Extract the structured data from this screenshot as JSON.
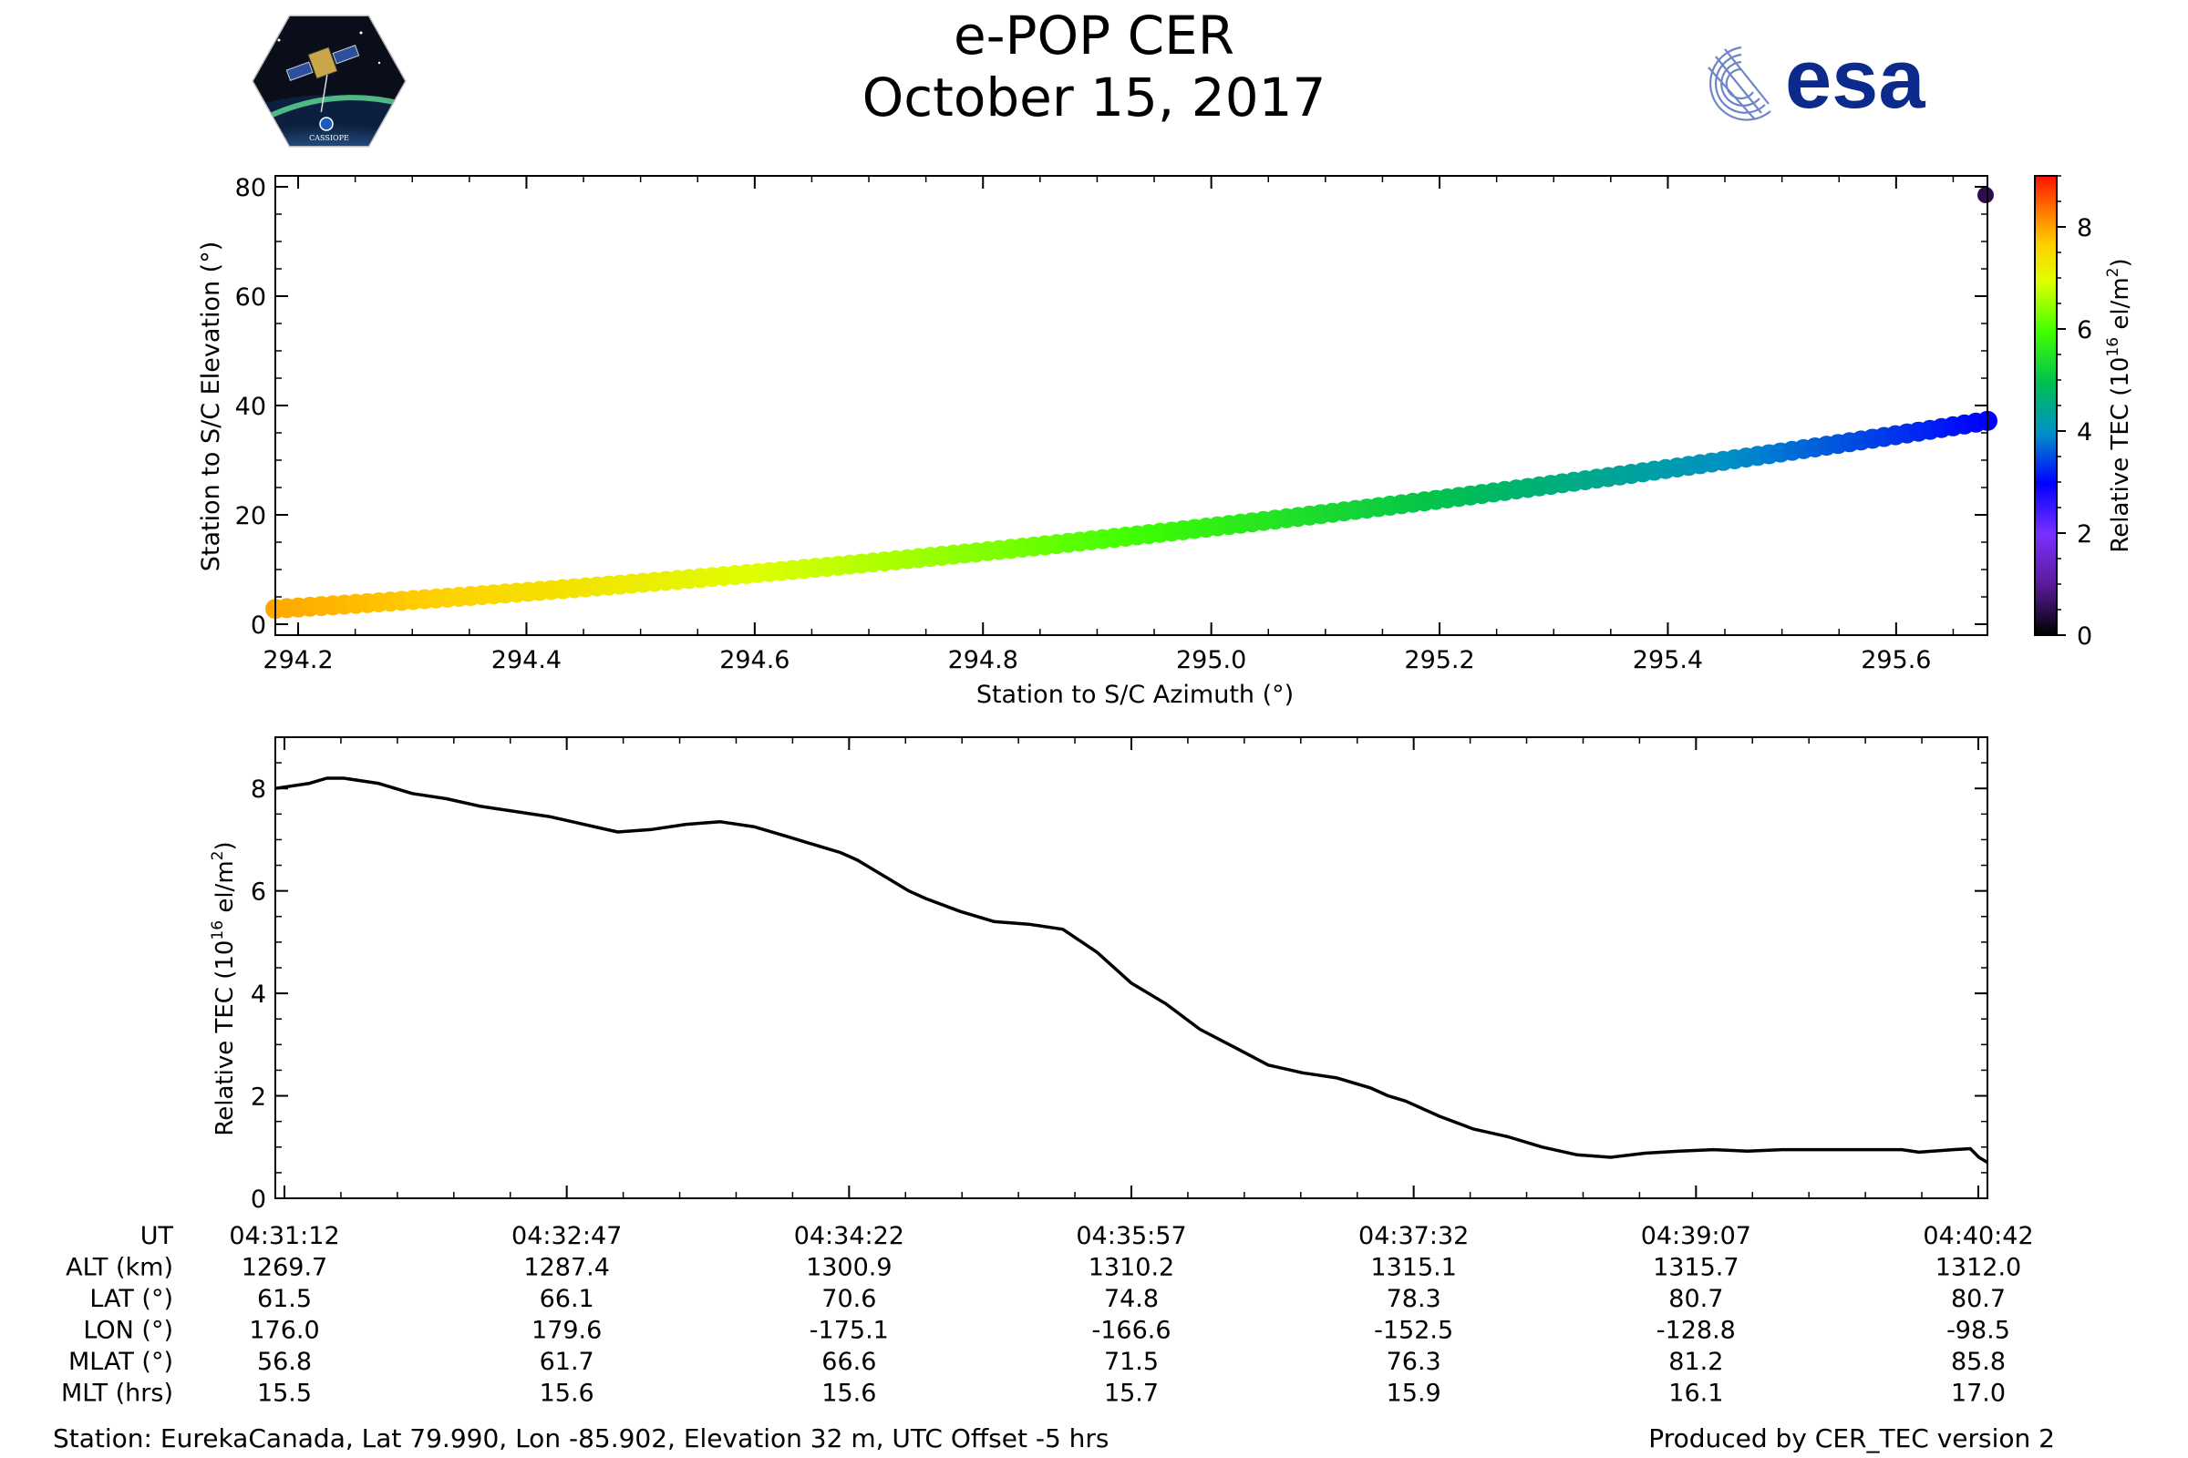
{
  "header": {
    "title": "e-POP CER",
    "date": "October 15, 2017",
    "left_logo_text": "CASSIOPE",
    "right_logo_text": "esa"
  },
  "colors": {
    "line": "#000000",
    "esa_blue": "#0b2a8c",
    "esa_light": "#6e86c6"
  },
  "footer": {
    "station": "Station: EurekaCanada, Lat 79.990, Lon -85.902, Elevation 32 m, UTC Offset -5 hrs",
    "produced": "Produced by CER_TEC version 2"
  },
  "colorbar": {
    "label": "Relative TEC (10^16 el/m^2)",
    "label_base": "Relative TEC (10",
    "label_exp": "16",
    "label_mid": " el/m",
    "label_exp2": "2",
    "label_end": ")",
    "ticks": [
      "0",
      "2",
      "4",
      "6",
      "8"
    ],
    "range": [
      0,
      9
    ]
  },
  "chart_data": [
    {
      "type": "scatter",
      "title": "",
      "xlabel": "Station to S/C Azimuth (°)",
      "ylabel": "Station to S/C Elevation (°)",
      "xlim": [
        294.18,
        295.68
      ],
      "ylim": [
        -2,
        82
      ],
      "xticks": [
        "294.2",
        "294.4",
        "294.6",
        "294.8",
        "295.0",
        "295.2",
        "295.4",
        "295.6"
      ],
      "yticks": [
        "0",
        "20",
        "40",
        "60",
        "80"
      ],
      "series": [
        {
          "name": "elevation",
          "azimuth_start": 294.18,
          "azimuth_end": 295.68,
          "elevation_start": 2.8,
          "elevation_end": 37.2,
          "tec_start": 8.0,
          "tec_end": 3.0,
          "n_points": 150
        },
        {
          "name": "outlier",
          "azimuth": 295.68,
          "elevation": 78.5,
          "tec": 0.5
        }
      ]
    },
    {
      "type": "line",
      "title": "",
      "xlabel": "",
      "ylabel": "Relative TEC (10^16 el/m^2)",
      "ylabel_base": "Relative TEC (10",
      "ylabel_exp": "16",
      "ylabel_mid": " el/m",
      "ylabel_exp2": "2",
      "ylabel_end": ")",
      "xlim": [
        0,
        100
      ],
      "ylim": [
        0,
        9
      ],
      "yticks": [
        "0",
        "2",
        "4",
        "6",
        "8"
      ],
      "x": [
        0,
        2,
        3,
        4,
        6,
        7,
        8,
        10,
        12,
        16,
        20,
        22,
        24,
        26,
        28,
        30,
        31,
        32,
        33,
        34,
        36,
        37,
        38,
        40,
        42,
        44,
        46,
        48,
        50,
        52,
        54,
        56,
        58,
        60,
        62,
        64,
        65,
        66,
        68,
        70,
        72,
        74,
        76,
        78,
        80,
        82,
        84,
        86,
        88,
        90,
        92,
        94,
        95,
        96,
        98,
        99,
        99.5,
        100
      ],
      "y": [
        8.0,
        8.1,
        8.2,
        8.2,
        8.1,
        8.0,
        7.9,
        7.8,
        7.65,
        7.45,
        7.15,
        7.2,
        7.3,
        7.35,
        7.25,
        7.05,
        6.95,
        6.85,
        6.75,
        6.6,
        6.2,
        6.0,
        5.85,
        5.6,
        5.4,
        5.35,
        5.25,
        4.8,
        4.2,
        3.8,
        3.3,
        2.95,
        2.6,
        2.45,
        2.35,
        2.15,
        2.0,
        1.9,
        1.6,
        1.35,
        1.2,
        1.0,
        0.85,
        0.8,
        0.88,
        0.92,
        0.95,
        0.92,
        0.95,
        0.95,
        0.95,
        0.95,
        0.95,
        0.9,
        0.95,
        0.97,
        0.8,
        0.7
      ]
    }
  ],
  "table": {
    "row_labels": [
      "UT",
      "ALT (km)",
      "LAT (°)",
      "LON (°)",
      "MLAT (°)",
      "MLT (hrs)"
    ],
    "columns": [
      [
        "04:31:12",
        "1269.7",
        "61.5",
        "176.0",
        "56.8",
        "15.5"
      ],
      [
        "04:32:47",
        "1287.4",
        "66.1",
        "179.6",
        "61.7",
        "15.6"
      ],
      [
        "04:34:22",
        "1300.9",
        "70.6",
        "-175.1",
        "66.6",
        "15.6"
      ],
      [
        "04:35:57",
        "1310.2",
        "74.8",
        "-166.6",
        "71.5",
        "15.7"
      ],
      [
        "04:37:32",
        "1315.1",
        "78.3",
        "-152.5",
        "76.3",
        "15.9"
      ],
      [
        "04:39:07",
        "1315.7",
        "80.7",
        "-128.8",
        "81.2",
        "16.1"
      ],
      [
        "04:40:42",
        "1312.0",
        "80.7",
        "-98.5",
        "85.8",
        "17.0"
      ]
    ]
  }
}
